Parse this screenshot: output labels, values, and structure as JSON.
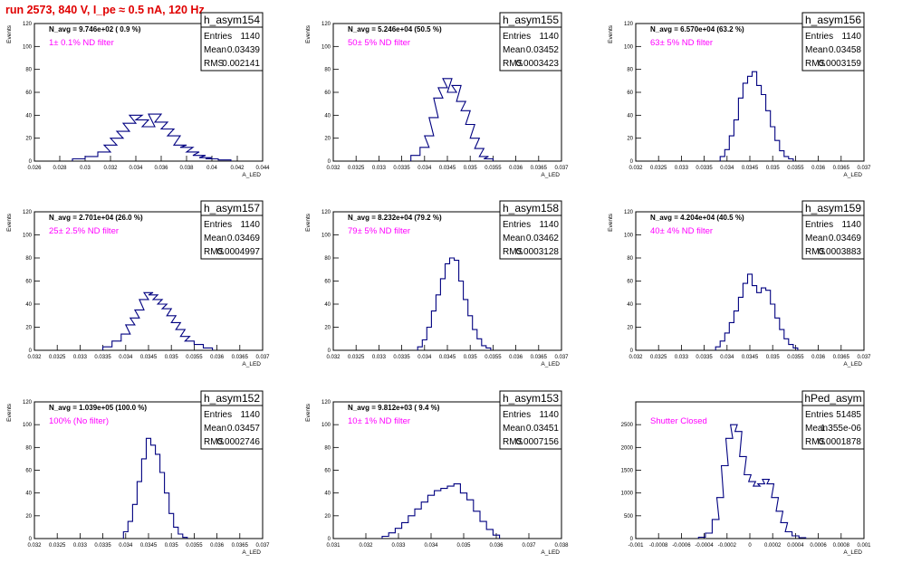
{
  "header": {
    "run_title": "run 2573,   840 V, I_pe ≈ 0.5 nA, 120 Hz"
  },
  "colors": {
    "histogram_line": "#000080",
    "filter_text": "#ff00ff",
    "run_title": "#e00000"
  },
  "chart_data": [
    {
      "type": "histogram",
      "title": "h_asym154",
      "xlabel": "A_LED",
      "ylabel": "Events",
      "xlim": [
        0.026,
        0.044
      ],
      "ylim": [
        0,
        120
      ],
      "xticks": [
        "0.026",
        "0.028",
        "0.03",
        "0.032",
        "0.034",
        "0.036",
        "0.038",
        "0.04",
        "0.042",
        "0.044"
      ],
      "yticks": [
        "0",
        "20",
        "40",
        "60",
        "80",
        "100",
        "120"
      ],
      "stats": {
        "entries": "1140",
        "mean": "0.03439",
        "rms": "0.002141"
      },
      "n_avg_text": "N_avg = 9.746e+02 ( 0.9 %)",
      "filter_text": "1± 0.1% ND filter",
      "bins": {
        "x": [
          0.0295,
          0.0305,
          0.0315,
          0.032,
          0.0325,
          0.033,
          0.0335,
          0.034,
          0.0345,
          0.035,
          0.0355,
          0.036,
          0.0365,
          0.037,
          0.0375,
          0.038,
          0.0385,
          0.039,
          0.0395,
          0.04,
          0.041
        ],
        "counts": [
          2,
          4,
          8,
          14,
          20,
          26,
          33,
          40,
          36,
          30,
          41,
          34,
          28,
          22,
          14,
          12,
          8,
          5,
          3,
          2,
          1
        ]
      }
    },
    {
      "type": "histogram",
      "title": "h_asym155",
      "xlabel": "A_LED",
      "ylabel": "Events",
      "xlim": [
        0.032,
        0.037
      ],
      "ylim": [
        0,
        120
      ],
      "xticks": [
        "0.032",
        "0.0325",
        "0.033",
        "0.0335",
        "0.034",
        "0.0345",
        "0.035",
        "0.0355",
        "0.036",
        "0.0365",
        "0.037"
      ],
      "yticks": [
        "0",
        "20",
        "40",
        "60",
        "80",
        "100",
        "120"
      ],
      "stats": {
        "entries": "1140",
        "mean": "0.03452",
        "rms": "0.0003423"
      },
      "n_avg_text": "N_avg = 5.246e+04 (50.5 %)",
      "filter_text": "50± 5% ND filter",
      "bins": {
        "x": [
          0.0338,
          0.034,
          0.0341,
          0.0342,
          0.0343,
          0.0344,
          0.0345,
          0.0346,
          0.0347,
          0.0348,
          0.0349,
          0.035,
          0.0351,
          0.0352,
          0.0353,
          0.0354
        ],
        "counts": [
          5,
          12,
          22,
          38,
          55,
          64,
          72,
          60,
          66,
          52,
          44,
          32,
          20,
          11,
          4,
          2
        ]
      }
    },
    {
      "type": "histogram",
      "title": "h_asym156",
      "xlabel": "A_LED",
      "ylabel": "Events",
      "xlim": [
        0.032,
        0.037
      ],
      "ylim": [
        0,
        120
      ],
      "xticks": [
        "0.032",
        "0.0325",
        "0.033",
        "0.0335",
        "0.034",
        "0.0345",
        "0.035",
        "0.0355",
        "0.036",
        "0.0365",
        "0.037"
      ],
      "yticks": [
        "0",
        "20",
        "40",
        "60",
        "80",
        "100",
        "120"
      ],
      "stats": {
        "entries": "1140",
        "mean": "0.03458",
        "rms": "0.0003159"
      },
      "n_avg_text": "N_avg = 6.570e+04 (63.2 %)",
      "filter_text": "63± 5% ND filter",
      "bins": {
        "x": [
          0.0339,
          0.034,
          0.0341,
          0.0342,
          0.0343,
          0.0344,
          0.0345,
          0.0346,
          0.0347,
          0.0348,
          0.0349,
          0.035,
          0.0351,
          0.0352,
          0.0353,
          0.0354
        ],
        "counts": [
          4,
          10,
          22,
          36,
          55,
          68,
          74,
          78,
          66,
          58,
          44,
          30,
          18,
          9,
          4,
          2
        ]
      }
    },
    {
      "type": "histogram",
      "title": "h_asym157",
      "xlabel": "A_LED",
      "ylabel": "Events",
      "xlim": [
        0.032,
        0.037
      ],
      "ylim": [
        0,
        120
      ],
      "xticks": [
        "0.032",
        "0.0325",
        "0.033",
        "0.0335",
        "0.034",
        "0.0345",
        "0.035",
        "0.0355",
        "0.036",
        "0.0365",
        "0.037"
      ],
      "yticks": [
        "0",
        "20",
        "40",
        "60",
        "80",
        "100",
        "120"
      ],
      "stats": {
        "entries": "1140",
        "mean": "0.03469",
        "rms": "0.0004997"
      },
      "n_avg_text": "N_avg = 2.701e+04 (26.0 %)",
      "filter_text": "25± 2.5% ND filter",
      "bins": {
        "x": [
          0.0336,
          0.0338,
          0.034,
          0.0341,
          0.0342,
          0.0343,
          0.0344,
          0.0345,
          0.0346,
          0.0347,
          0.0348,
          0.0349,
          0.035,
          0.0351,
          0.0352,
          0.0353,
          0.0354,
          0.0356,
          0.0358
        ],
        "counts": [
          3,
          8,
          14,
          22,
          28,
          35,
          44,
          50,
          48,
          44,
          40,
          36,
          30,
          24,
          18,
          12,
          8,
          5,
          2
        ]
      }
    },
    {
      "type": "histogram",
      "title": "h_asym158",
      "xlabel": "A_LED",
      "ylabel": "Events",
      "xlim": [
        0.032,
        0.037
      ],
      "ylim": [
        0,
        120
      ],
      "xticks": [
        "0.032",
        "0.0325",
        "0.033",
        "0.0335",
        "0.034",
        "0.0345",
        "0.035",
        "0.0355",
        "0.036",
        "0.0365",
        "0.037"
      ],
      "yticks": [
        "0",
        "20",
        "40",
        "60",
        "80",
        "100",
        "120"
      ],
      "stats": {
        "entries": "1140",
        "mean": "0.03462",
        "rms": "0.0003128"
      },
      "n_avg_text": "N_avg = 8.232e+04 (79.2 %)",
      "filter_text": "79± 5% ND filter",
      "bins": {
        "x": [
          0.0339,
          0.034,
          0.0341,
          0.0342,
          0.0343,
          0.0344,
          0.0345,
          0.0346,
          0.0347,
          0.0348,
          0.0349,
          0.035,
          0.0351,
          0.0352,
          0.0353,
          0.0354
        ],
        "counts": [
          3,
          9,
          20,
          34,
          48,
          62,
          75,
          80,
          78,
          60,
          44,
          30,
          18,
          10,
          4,
          2
        ]
      }
    },
    {
      "type": "histogram",
      "title": "h_asym159",
      "xlabel": "A_LED",
      "ylabel": "Events",
      "xlim": [
        0.032,
        0.037
      ],
      "ylim": [
        0,
        120
      ],
      "xticks": [
        "0.032",
        "0.0325",
        "0.033",
        "0.0335",
        "0.034",
        "0.0345",
        "0.035",
        "0.0355",
        "0.036",
        "0.0365",
        "0.037"
      ],
      "yticks": [
        "0",
        "20",
        "40",
        "60",
        "80",
        "100",
        "120"
      ],
      "stats": {
        "entries": "1140",
        "mean": "0.03469",
        "rms": "0.0003883"
      },
      "n_avg_text": "N_avg = 4.204e+04 (40.5 %)",
      "filter_text": "40± 4% ND filter",
      "bins": {
        "x": [
          0.0338,
          0.0339,
          0.034,
          0.0341,
          0.0342,
          0.0343,
          0.0344,
          0.0345,
          0.0346,
          0.0347,
          0.0348,
          0.0349,
          0.035,
          0.0351,
          0.0352,
          0.0353,
          0.0354,
          0.0355
        ],
        "counts": [
          3,
          8,
          15,
          24,
          34,
          46,
          58,
          66,
          56,
          50,
          54,
          52,
          40,
          28,
          18,
          10,
          5,
          2
        ]
      }
    },
    {
      "type": "histogram",
      "title": "h_asym152",
      "xlabel": "A_LED",
      "ylabel": "Events",
      "xlim": [
        0.032,
        0.037
      ],
      "ylim": [
        0,
        120
      ],
      "xticks": [
        "0.032",
        "0.0325",
        "0.033",
        "0.0335",
        "0.034",
        "0.0345",
        "0.035",
        "0.0355",
        "0.036",
        "0.0365",
        "0.037"
      ],
      "yticks": [
        "0",
        "20",
        "40",
        "60",
        "80",
        "100",
        "120"
      ],
      "stats": {
        "entries": "1140",
        "mean": "0.03457",
        "rms": "0.0002746"
      },
      "n_avg_text": "N_avg = 1.039e+05 (100.0 %)",
      "filter_text": "100% (No filter)",
      "bins": {
        "x": [
          0.034,
          0.0341,
          0.0342,
          0.0343,
          0.0344,
          0.0345,
          0.0346,
          0.0347,
          0.0348,
          0.0349,
          0.035,
          0.0351,
          0.0352,
          0.0353
        ],
        "counts": [
          6,
          15,
          30,
          50,
          70,
          88,
          82,
          74,
          58,
          40,
          22,
          10,
          4,
          1
        ]
      }
    },
    {
      "type": "histogram",
      "title": "h_asym153",
      "xlabel": "A_LED",
      "ylabel": "Events",
      "xlim": [
        0.031,
        0.038
      ],
      "ylim": [
        0,
        120
      ],
      "xticks": [
        "0.031",
        "0.032",
        "0.033",
        "0.034",
        "0.035",
        "0.036",
        "0.037",
        "0.038"
      ],
      "yticks": [
        "0",
        "20",
        "40",
        "60",
        "80",
        "100",
        "120"
      ],
      "stats": {
        "entries": "1140",
        "mean": "0.03451",
        "rms": "0.0007156"
      },
      "n_avg_text": "N_avg = 9.812e+03 ( 9.4 %)",
      "filter_text": "10± 1% ND filter",
      "bins": {
        "x": [
          0.0326,
          0.0328,
          0.033,
          0.0332,
          0.0334,
          0.0336,
          0.0338,
          0.034,
          0.0342,
          0.0344,
          0.0346,
          0.0348,
          0.035,
          0.0352,
          0.0354,
          0.0356,
          0.0358,
          0.036
        ],
        "counts": [
          2,
          5,
          9,
          14,
          20,
          26,
          32,
          38,
          42,
          44,
          46,
          48,
          40,
          34,
          24,
          15,
          8,
          3
        ]
      }
    },
    {
      "type": "histogram",
      "title": "hPed_asym",
      "xlabel": "A_LED",
      "ylabel": "",
      "xlim": [
        -0.001,
        0.001
      ],
      "ylim": [
        0,
        3000
      ],
      "xticks": [
        "-0.001",
        "-0.0008",
        "-0.0006",
        "-0.0004",
        "-0.0002",
        "0",
        "0.0002",
        "0.0004",
        "0.0006",
        "0.0008",
        "0.001"
      ],
      "yticks": [
        "0",
        "500",
        "1000",
        "1500",
        "2000",
        "2500"
      ],
      "stats": {
        "entries": "51485",
        "mean": "1.355e-06",
        "rms": "0.0001878"
      },
      "n_avg_text": "",
      "filter_text": "Shutter Closed",
      "bins": {
        "x": [
          -0.00042,
          -0.00036,
          -0.0003,
          -0.00026,
          -0.00022,
          -0.00018,
          -0.00014,
          -0.0001,
          -6e-05,
          -2e-05,
          2e-05,
          6e-05,
          0.0001,
          0.00014,
          0.00018,
          0.00022,
          0.00026,
          0.0003,
          0.00034,
          0.0004,
          0.00046
        ],
        "counts": [
          30,
          120,
          420,
          900,
          1600,
          2200,
          2500,
          2350,
          1800,
          1400,
          1250,
          1150,
          1200,
          1300,
          1200,
          900,
          600,
          350,
          150,
          60,
          20
        ]
      }
    }
  ]
}
